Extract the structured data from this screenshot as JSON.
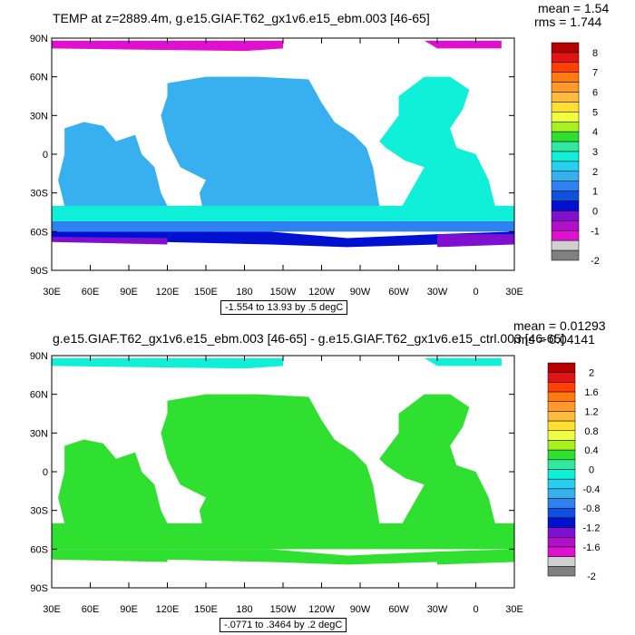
{
  "panels": [
    {
      "title": "TEMP at z=2889.4m, g.e15.GIAF.T62_gx1v6.e15_ebm.003 [46-65]",
      "mean": "mean = 1.54",
      "rms": "rms = 1.744",
      "range_note": "-1.554 to 13.93 by .5 degC",
      "lat_labels": [
        "90N",
        "60N",
        "30N",
        "0",
        "30S",
        "60S",
        "90S"
      ],
      "lon_labels": [
        "30E",
        "60E",
        "90E",
        "120E",
        "150E",
        "180",
        "150W",
        "120W",
        "90W",
        "60W",
        "30W",
        "0",
        "30E"
      ],
      "colorbar_labels": [
        "8",
        "7",
        "6",
        "5",
        "4",
        "3",
        "2",
        "1",
        "0",
        "-1",
        "-2"
      ],
      "colorbar_colors": [
        "#b40000",
        "#e01414",
        "#ff4000",
        "#ff7a10",
        "#ff9a28",
        "#ffbb40",
        "#ffe030",
        "#f0ff40",
        "#a8f020",
        "#30e030",
        "#30e8a0",
        "#10f0d8",
        "#28d0f0",
        "#38b0f0",
        "#3080f0",
        "#1050e0",
        "#0010d0",
        "#8010d0",
        "#b010c8",
        "#e010d0",
        "#d0d0d0",
        "#808080"
      ]
    },
    {
      "title": "g.e15.GIAF.T62_gx1v6.e15_ebm.003 [46-65] - g.e15.GIAF.T62_gx1v6.e15_ctrl.003 [46-65]",
      "mean": "mean = 0.01293",
      "rms": "rms = 0.04141",
      "range_note": "-.0771 to .3464 by .2 degC",
      "lat_labels": [
        "90N",
        "60N",
        "30N",
        "0",
        "30S",
        "60S",
        "90S"
      ],
      "lon_labels": [
        "30E",
        "60E",
        "90E",
        "120E",
        "150E",
        "180",
        "150W",
        "120W",
        "90W",
        "60W",
        "30W",
        "0",
        "30E"
      ],
      "colorbar_labels": [
        "2",
        "1.6",
        "1.2",
        "0.8",
        "0.4",
        "0",
        "-0.4",
        "-0.8",
        "-1.2",
        "-1.6",
        "-2"
      ],
      "colorbar_colors": [
        "#b40000",
        "#e01414",
        "#ff4000",
        "#ff7a10",
        "#ff9a28",
        "#ffbb40",
        "#ffe030",
        "#f0ff40",
        "#a8f020",
        "#30e030",
        "#30e8a0",
        "#10f0d8",
        "#28d0f0",
        "#38b0f0",
        "#3080f0",
        "#1050e0",
        "#0010d0",
        "#8010d0",
        "#b010c8",
        "#e010d0",
        "#d0d0d0",
        "#808080"
      ]
    }
  ]
}
